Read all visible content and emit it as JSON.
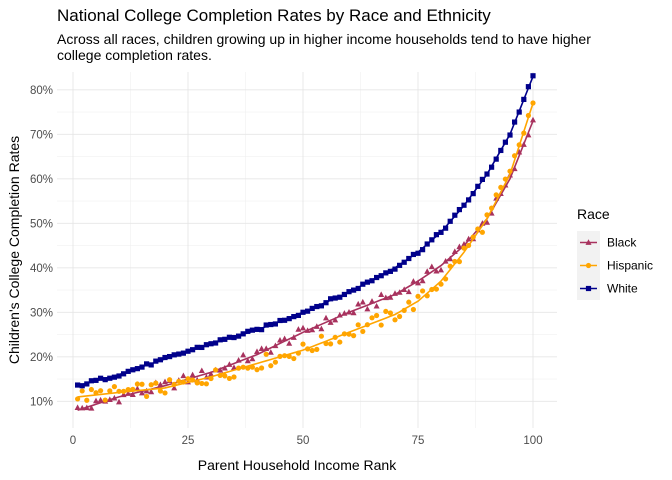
{
  "chart_data": {
    "type": "scatter",
    "title": "National College Completion Rates by Race and Ethnicity",
    "subtitle": "Across all races, children growing up in higher income households tend to have higher college completion rates.",
    "xlabel": "Parent Household Income Rank",
    "ylabel": "Children's College Completion Rates",
    "xlim": [
      0,
      100
    ],
    "ylim": [
      4,
      84
    ],
    "x_ticks": [
      0,
      25,
      50,
      75,
      100
    ],
    "x_tick_labels": [
      "0",
      "25",
      "50",
      "75",
      "100"
    ],
    "y_ticks": [
      10,
      20,
      30,
      40,
      50,
      60,
      70,
      80
    ],
    "y_tick_labels": [
      "10%",
      "20%",
      "30%",
      "40%",
      "50%",
      "60%",
      "70%",
      "80%"
    ],
    "grid": true,
    "legend": {
      "title": "Race",
      "position": "right"
    },
    "series": [
      {
        "name": "Black",
        "color": "#a8325e",
        "marker": "triangle",
        "x": [
          1,
          10,
          20,
          30,
          40,
          50,
          60,
          70,
          75,
          80,
          85,
          90,
          95,
          100
        ],
        "values": [
          8,
          11,
          13.5,
          16.5,
          20.5,
          25.5,
          30,
          34,
          37,
          40.5,
          45,
          51,
          60,
          73
        ]
      },
      {
        "name": "Hispanic",
        "color": "#ffa500",
        "marker": "circle",
        "x": [
          1,
          10,
          20,
          30,
          40,
          50,
          60,
          70,
          75,
          80,
          85,
          90,
          95,
          100
        ],
        "values": [
          11,
          12,
          13,
          15.5,
          18.5,
          21.5,
          25.5,
          29.5,
          32.5,
          37,
          43.5,
          51,
          61,
          77
        ]
      },
      {
        "name": "White",
        "color": "#00008b",
        "marker": "square",
        "x": [
          1,
          10,
          20,
          30,
          40,
          50,
          60,
          70,
          75,
          80,
          85,
          90,
          95,
          100
        ],
        "values": [
          13.5,
          16,
          19.5,
          23,
          26,
          30,
          34.5,
          40,
          43.5,
          48,
          54,
          61,
          70,
          83
        ]
      }
    ]
  }
}
